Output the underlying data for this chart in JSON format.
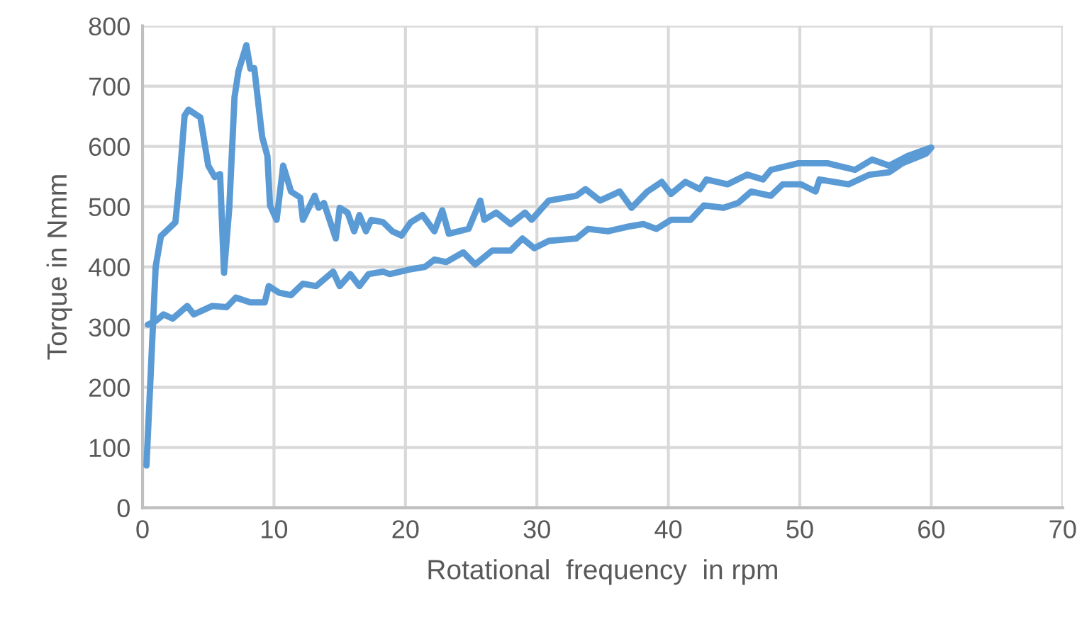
{
  "chart_data": {
    "type": "line",
    "xlabel": "Rotational  frequency  in rpm",
    "ylabel": "Torque in Nmm",
    "series": [
      {
        "color": "#5b9bd5",
        "x": [
          0.3,
          1.0,
          1.4,
          2.5,
          2.8,
          3.2,
          3.5,
          4.4,
          5.0,
          5.5,
          5.9,
          6.2,
          6.6,
          7.0,
          7.3,
          7.9,
          8.2,
          8.5,
          9.1,
          9.5,
          9.7,
          10.2,
          10.7,
          11.3,
          12.0,
          12.2,
          13.1,
          13.4,
          13.8,
          14.7,
          15.0,
          15.6,
          16.1,
          16.5,
          17.0,
          17.4,
          18.3,
          19.0,
          19.7,
          20.4,
          21.3,
          22.2,
          22.8,
          23.3,
          24.8,
          25.7,
          26.0,
          26.9,
          28.0,
          29.1,
          29.6,
          30.9,
          33.0,
          33.7,
          34.8,
          36.3,
          37.2,
          38.4,
          39.5,
          40.2,
          41.3,
          42.4,
          42.9,
          44.5,
          46.0,
          47.2,
          47.8,
          49.9,
          52.1,
          54.2,
          55.5,
          56.8,
          58.2,
          60.0,
          59.6,
          57.8,
          56.8,
          55.3,
          53.7,
          51.5,
          51.2,
          50.1,
          48.7,
          47.8,
          46.3,
          45.3,
          44.2,
          42.7,
          41.7,
          40.2,
          39.1,
          38.1,
          37.0,
          35.4,
          33.9,
          33.0,
          30.9,
          29.8,
          28.9,
          28.0,
          26.6,
          25.3,
          24.4,
          23.1,
          22.2,
          21.5,
          20.4,
          18.8,
          18.3,
          17.2,
          16.5,
          15.8,
          15.0,
          14.5,
          13.2,
          12.2,
          11.3,
          10.4,
          9.6,
          9.3,
          8.2,
          7.1,
          6.4,
          5.3,
          3.9,
          3.4,
          2.3,
          1.6,
          1.0,
          0.4
        ],
        "values": [
          70,
          400,
          451,
          474,
          541,
          651,
          661,
          648,
          568,
          549,
          554,
          390,
          498,
          682,
          725,
          768,
          729,
          730,
          616,
          584,
          502,
          478,
          568,
          525,
          515,
          478,
          518,
          498,
          506,
          447,
          498,
          490,
          459,
          486,
          459,
          478,
          474,
          459,
          452,
          474,
          486,
          459,
          494,
          455,
          463,
          510,
          478,
          490,
          471,
          490,
          478,
          510,
          518,
          529,
          510,
          525,
          498,
          525,
          541,
          521,
          541,
          529,
          545,
          537,
          553,
          545,
          561,
          572,
          572,
          561,
          578,
          568,
          584,
          598,
          588,
          572,
          557,
          553,
          537,
          545,
          525,
          537,
          537,
          518,
          525,
          506,
          498,
          502,
          478,
          478,
          463,
          471,
          467,
          459,
          463,
          447,
          443,
          431,
          447,
          427,
          427,
          404,
          424,
          408,
          412,
          400,
          396,
          388,
          392,
          388,
          368,
          388,
          368,
          392,
          368,
          372,
          353,
          357,
          368,
          341,
          341,
          349,
          333,
          335,
          321,
          335,
          314,
          321,
          310,
          304
        ]
      }
    ],
    "xlim": [
      0,
      70
    ],
    "xticks": [
      0,
      10,
      20,
      30,
      40,
      50,
      60,
      70
    ],
    "ylim": [
      0,
      800
    ],
    "yticks": [
      0,
      100,
      200,
      300,
      400,
      500,
      600,
      700,
      800
    ],
    "grid": true,
    "legend": false,
    "marker": "none",
    "line_style": "solid"
  }
}
